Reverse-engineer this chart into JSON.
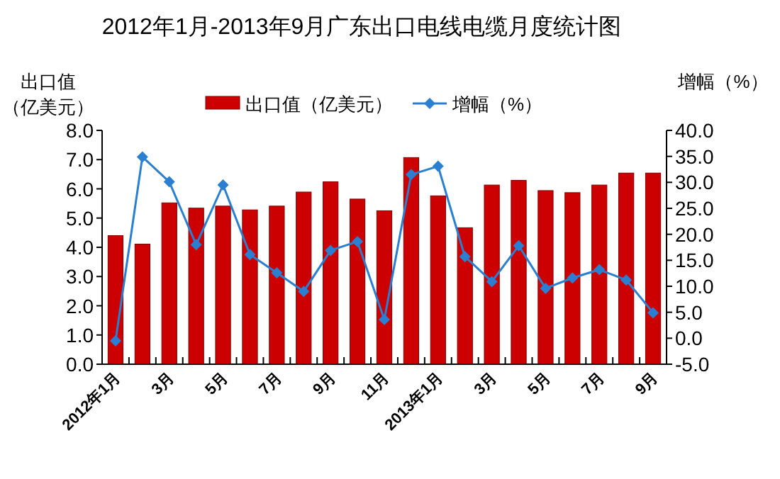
{
  "chart_data": {
    "type": "bar",
    "title": "2012年1月-2013年9月广东出口电线电缆月度统计图",
    "ylabel": "出口值（亿美元）",
    "y2label": "增幅（%）",
    "categories": [
      "2012年1月",
      null,
      "3月",
      null,
      "5月",
      null,
      "7月",
      null,
      "9月",
      null,
      "11月",
      null,
      "2013年1月",
      null,
      "3月",
      null,
      "5月",
      null,
      "7月",
      null,
      "9月"
    ],
    "series": [
      {
        "name": "出口值（亿美元）",
        "color": "#cc0000",
        "values": [
          4.4,
          4.11,
          5.52,
          5.34,
          5.41,
          5.28,
          5.41,
          5.89,
          6.24,
          5.65,
          5.25,
          7.07,
          5.76,
          4.67,
          6.13,
          6.29,
          5.94,
          5.87,
          6.13,
          6.54,
          6.54
        ]
      },
      {
        "name": "增幅（%）",
        "type": "line",
        "axis": "y2",
        "color": "#2a7fd0",
        "marker": "diamond",
        "values": [
          -0.5,
          34.9,
          30.1,
          18.0,
          29.5,
          16.1,
          12.6,
          9.0,
          16.9,
          18.6,
          3.6,
          31.5,
          33.1,
          15.7,
          10.9,
          17.8,
          9.6,
          11.6,
          13.2,
          11.2,
          4.9
        ]
      }
    ],
    "ylim": [
      0,
      8
    ],
    "yticks": [
      {
        "value": 0,
        "label": "0.0"
      },
      {
        "value": 1,
        "label": "1.0"
      },
      {
        "value": 2,
        "label": "2.0"
      },
      {
        "value": 3,
        "label": "3.0"
      },
      {
        "value": 4,
        "label": "4.0"
      },
      {
        "value": 5,
        "label": "5.0"
      },
      {
        "value": 6,
        "label": "6.0"
      },
      {
        "value": 7,
        "label": "7.0"
      },
      {
        "value": 8,
        "label": "8.0"
      }
    ],
    "y2lim": [
      -5,
      40
    ],
    "y2ticks": [
      {
        "value": -5,
        "label": "-5.0"
      },
      {
        "value": 0,
        "label": "0.0"
      },
      {
        "value": 5,
        "label": "5.0"
      },
      {
        "value": 10,
        "label": "10.0"
      },
      {
        "value": 15,
        "label": "15.0"
      },
      {
        "value": 20,
        "label": "20.0"
      },
      {
        "value": 25,
        "label": "25.0"
      },
      {
        "value": 30,
        "label": "30.0"
      },
      {
        "value": 35,
        "label": "35.0"
      },
      {
        "value": 40,
        "label": "40.0"
      }
    ],
    "grid": false,
    "legend": "top"
  }
}
